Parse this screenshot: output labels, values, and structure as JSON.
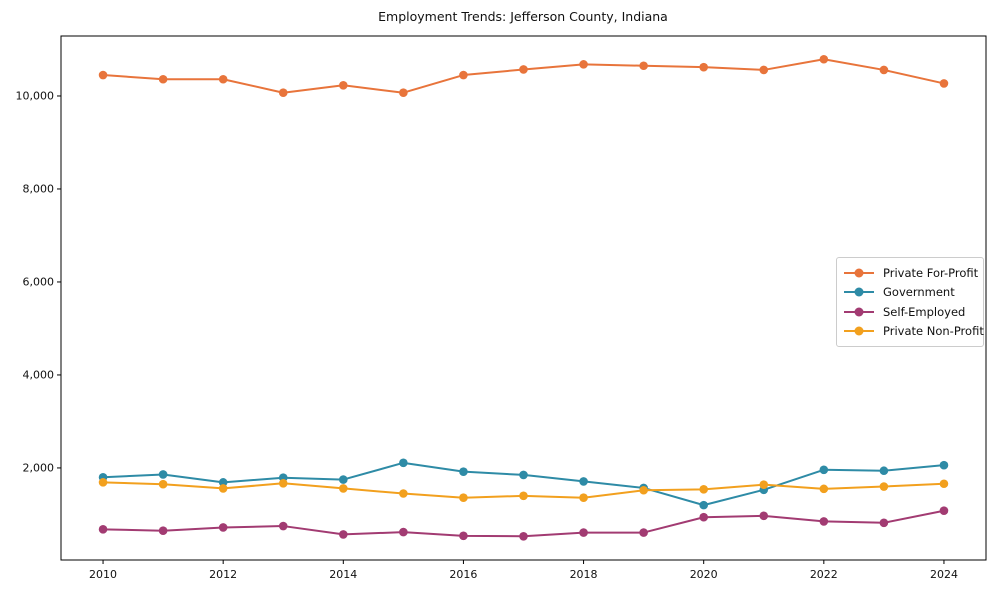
{
  "chart_data": {
    "type": "line",
    "title": "Employment Trends: Jefferson County, Indiana",
    "xlabel": "",
    "ylabel": "",
    "x": [
      2010,
      2011,
      2012,
      2013,
      2014,
      2015,
      2016,
      2017,
      2018,
      2019,
      2020,
      2021,
      2022,
      2023,
      2024
    ],
    "series": [
      {
        "name": "Private For-Profit",
        "color": "#E8743B",
        "values": [
          10450,
          10360,
          10360,
          10070,
          10230,
          10070,
          10450,
          10570,
          10680,
          10650,
          10620,
          10560,
          10790,
          10560,
          10270
        ]
      },
      {
        "name": "Government",
        "color": "#2E8BA6",
        "values": [
          1800,
          1860,
          1690,
          1790,
          1750,
          2110,
          1920,
          1850,
          1710,
          1570,
          1200,
          1530,
          1960,
          1940,
          2060
        ]
      },
      {
        "name": "Self-Employed",
        "color": "#A23B72",
        "values": [
          680,
          650,
          720,
          750,
          570,
          620,
          540,
          530,
          610,
          610,
          940,
          970,
          850,
          820,
          1080
        ]
      },
      {
        "name": "Private Non-Profit",
        "color": "#F2A01E",
        "values": [
          1690,
          1650,
          1560,
          1670,
          1560,
          1450,
          1360,
          1400,
          1360,
          1520,
          1540,
          1640,
          1550,
          1600,
          1660
        ]
      }
    ],
    "xticks": [
      2010,
      2012,
      2014,
      2016,
      2018,
      2020,
      2022,
      2024
    ],
    "yticks": [
      2000,
      4000,
      6000,
      8000,
      10000
    ],
    "xlim": [
      2009.3,
      2024.7
    ],
    "ylim": [
      20,
      11290
    ],
    "grid": false,
    "marker": "o",
    "line_width": 2,
    "legend_position": "center-right",
    "frame_color": "#000000",
    "text_color": "#111111",
    "background_color": "#ffffff"
  }
}
